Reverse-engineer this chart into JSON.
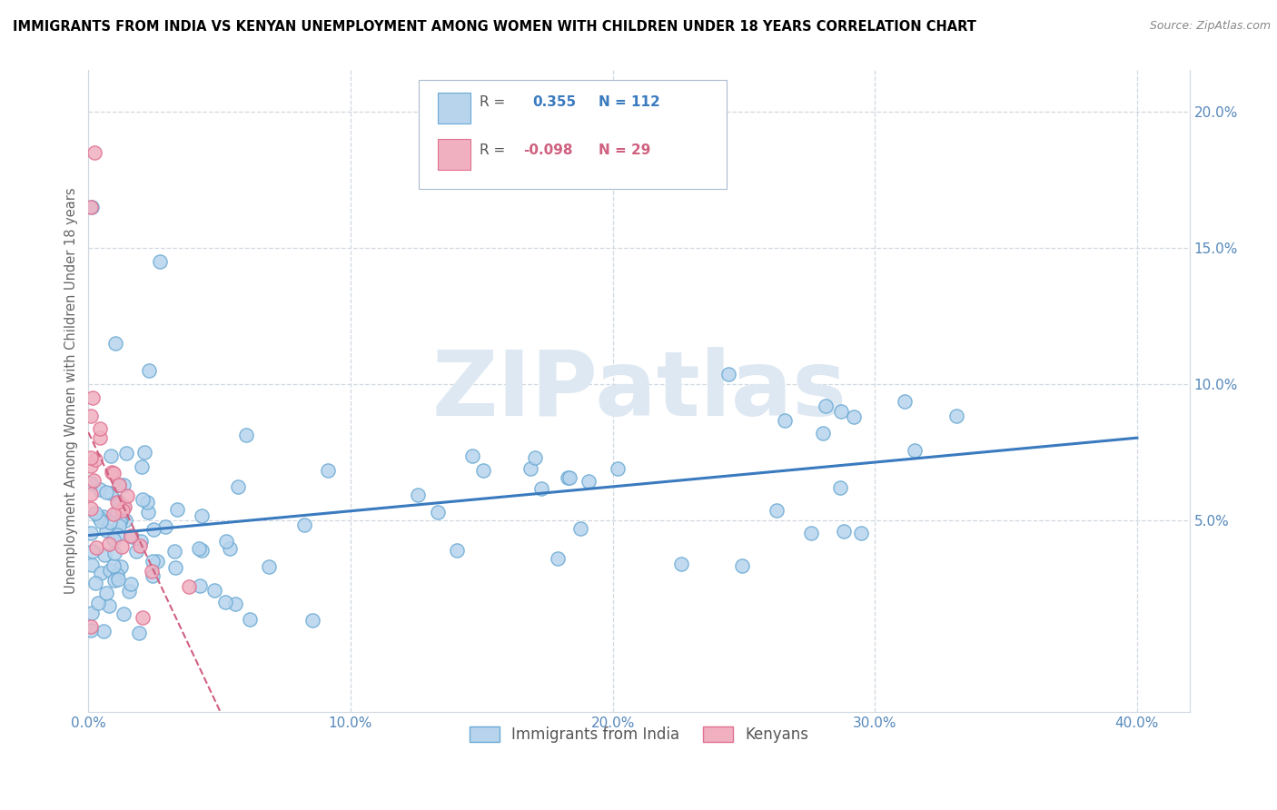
{
  "title": "IMMIGRANTS FROM INDIA VS KENYAN UNEMPLOYMENT AMONG WOMEN WITH CHILDREN UNDER 18 YEARS CORRELATION CHART",
  "source": "Source: ZipAtlas.com",
  "ylabel": "Unemployment Among Women with Children Under 18 years",
  "xlim": [
    0.0,
    0.42
  ],
  "ylim": [
    -0.02,
    0.215
  ],
  "ytick_vals": [
    0.05,
    0.1,
    0.15,
    0.2
  ],
  "ytick_labels": [
    "5.0%",
    "10.0%",
    "15.0%",
    "20.0%"
  ],
  "xtick_vals": [
    0.0,
    0.1,
    0.2,
    0.3,
    0.4
  ],
  "xtick_labels": [
    "0.0%",
    "10.0%",
    "20.0%",
    "30.0%",
    "40.0%"
  ],
  "blue_fill": "#b8d4ed",
  "blue_edge": "#6aaad4",
  "pink_fill": "#f0b0c0",
  "pink_edge": "#e07090",
  "blue_line": "#3a7abf",
  "pink_line": "#d06080",
  "tick_color": "#5588bb",
  "watermark_color": "#dde8f2",
  "grid_color": "#d0d8e0",
  "legend_edge": "#aabbcc"
}
